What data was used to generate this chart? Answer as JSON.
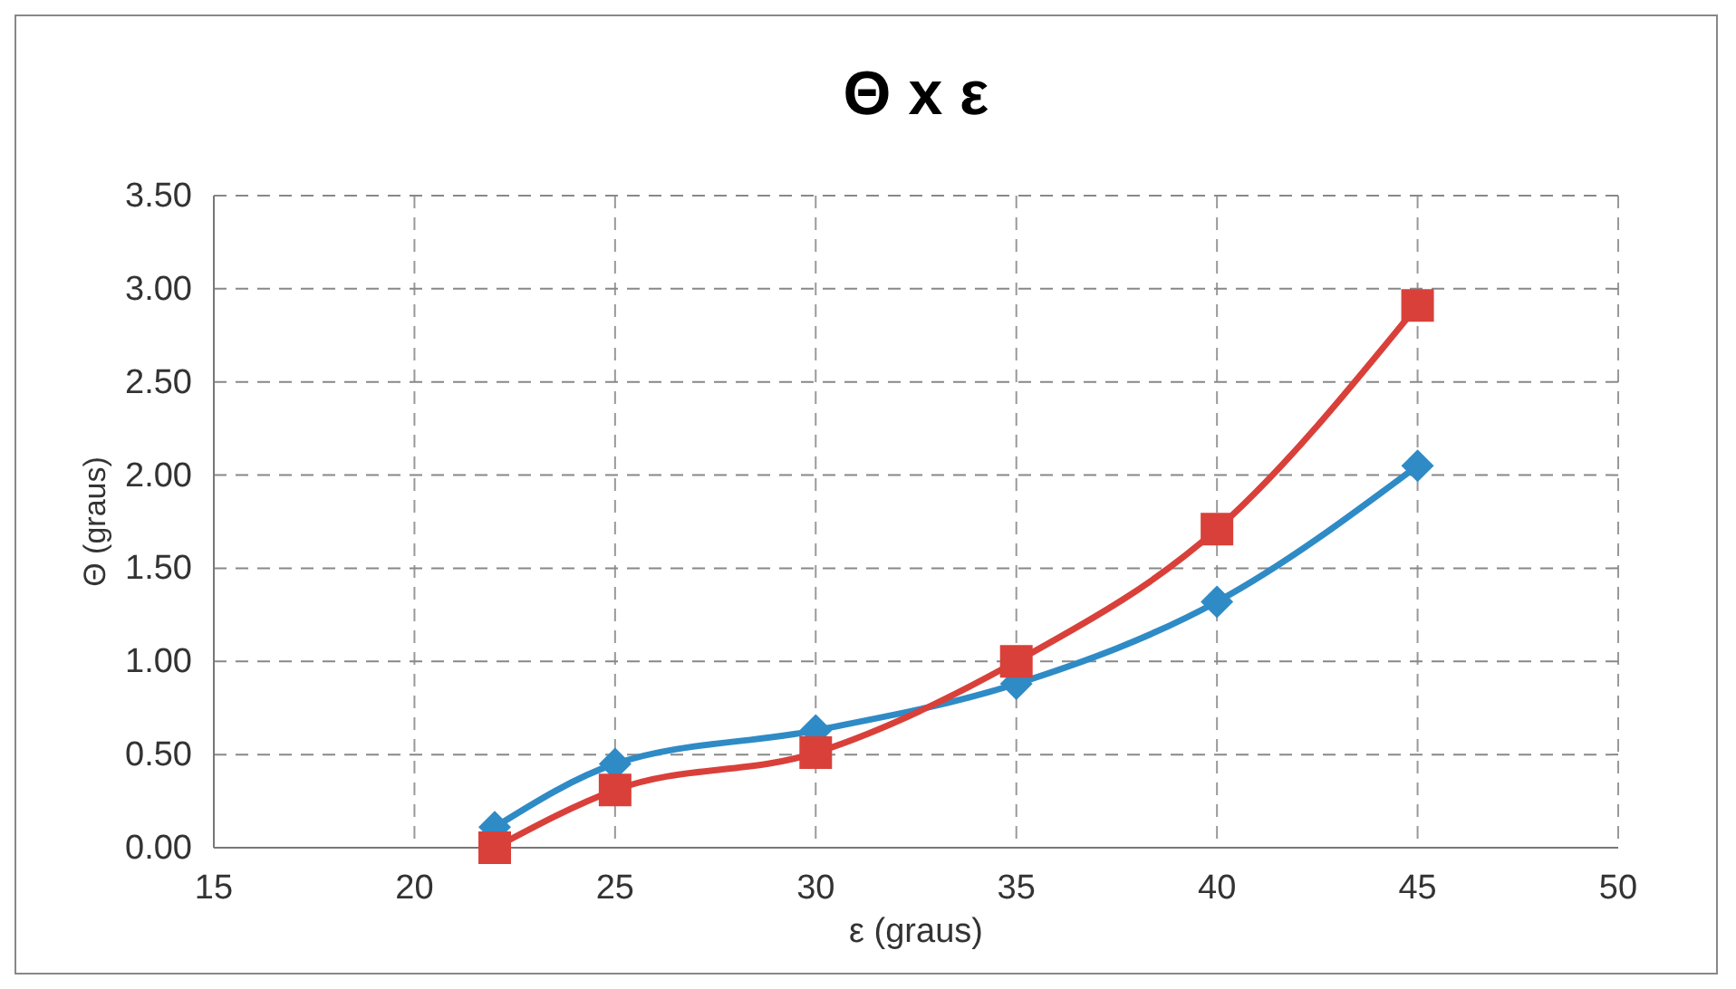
{
  "chart_data": {
    "type": "line",
    "title": "Θ x ε",
    "xlabel": "ε (graus)",
    "ylabel": "Θ (graus)",
    "x": [
      22,
      25,
      30,
      35,
      40,
      45
    ],
    "series": [
      {
        "color": "#2e8bc6",
        "marker": "diamond",
        "values": [
          0.11,
          0.45,
          0.63,
          0.88,
          1.32,
          2.05
        ]
      },
      {
        "color": "#d9403a",
        "marker": "square",
        "values": [
          0.0,
          0.31,
          0.51,
          1.0,
          1.71,
          2.91
        ]
      }
    ],
    "xlim": [
      15,
      50
    ],
    "xticks": [
      15,
      20,
      25,
      30,
      35,
      40,
      45,
      50
    ],
    "ylim": [
      0,
      3.5
    ],
    "yticks": [
      {
        "value": 0,
        "label": "0.00"
      },
      {
        "value": 0.5,
        "label": "0.50"
      },
      {
        "value": 1,
        "label": "1.00"
      },
      {
        "value": 1.5,
        "label": "1.50"
      },
      {
        "value": 2,
        "label": "2.00"
      },
      {
        "value": 2.5,
        "label": "2.50"
      },
      {
        "value": 3,
        "label": "3.00"
      },
      {
        "value": 3.5,
        "label": "3.50"
      }
    ],
    "grid": true,
    "line_style": "solid"
  }
}
